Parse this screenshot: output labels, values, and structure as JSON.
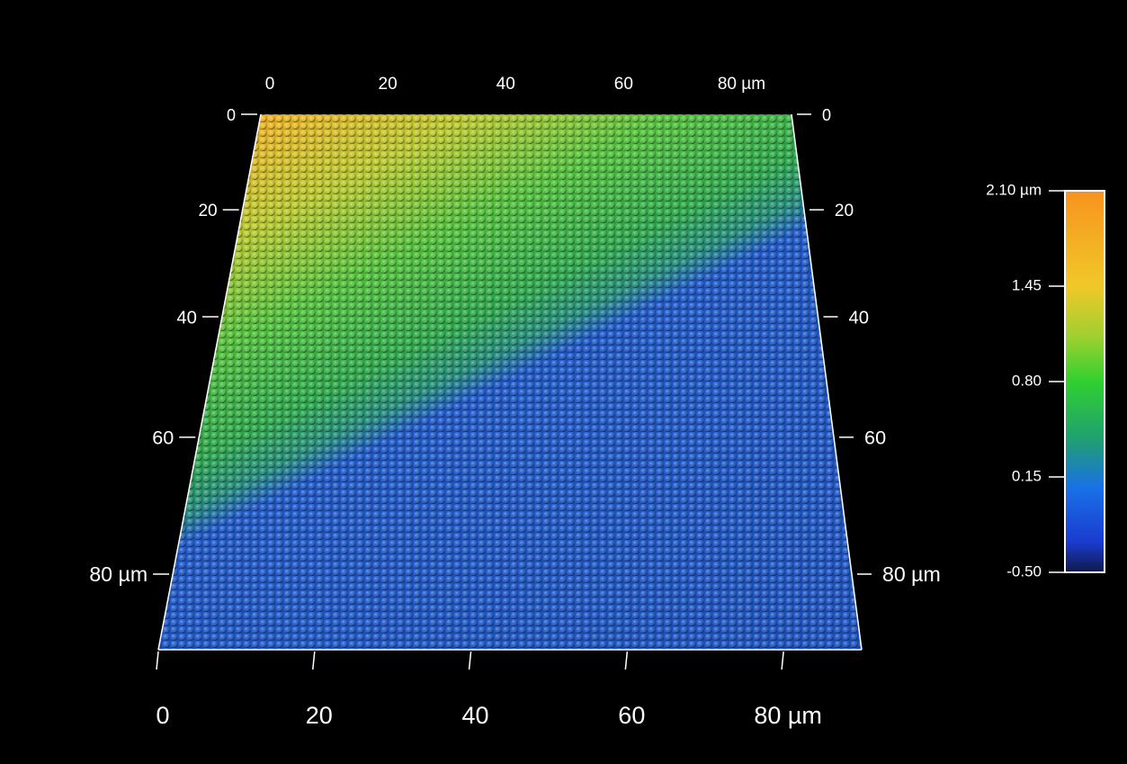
{
  "chart_data": {
    "type": "surface",
    "xlim": [
      0,
      90
    ],
    "ylim": [
      0,
      90
    ],
    "xticks": [
      0,
      20,
      40,
      60,
      {
        "value": 80,
        "label": "80 µm"
      }
    ],
    "yticks": [
      0,
      20,
      40,
      60,
      {
        "value": 80,
        "label": "80 µm"
      }
    ],
    "colorbar": {
      "lim": [
        -0.5,
        2.1
      ],
      "ticks": [
        {
          "value": -0.5,
          "label": "-0.50"
        },
        {
          "value": 0.15,
          "label": "0.15"
        },
        {
          "value": 0.8,
          "label": "0.80"
        },
        {
          "value": 1.45,
          "label": "1.45"
        },
        {
          "value": 2.1,
          "label": "2.10 µm"
        }
      ]
    }
  }
}
